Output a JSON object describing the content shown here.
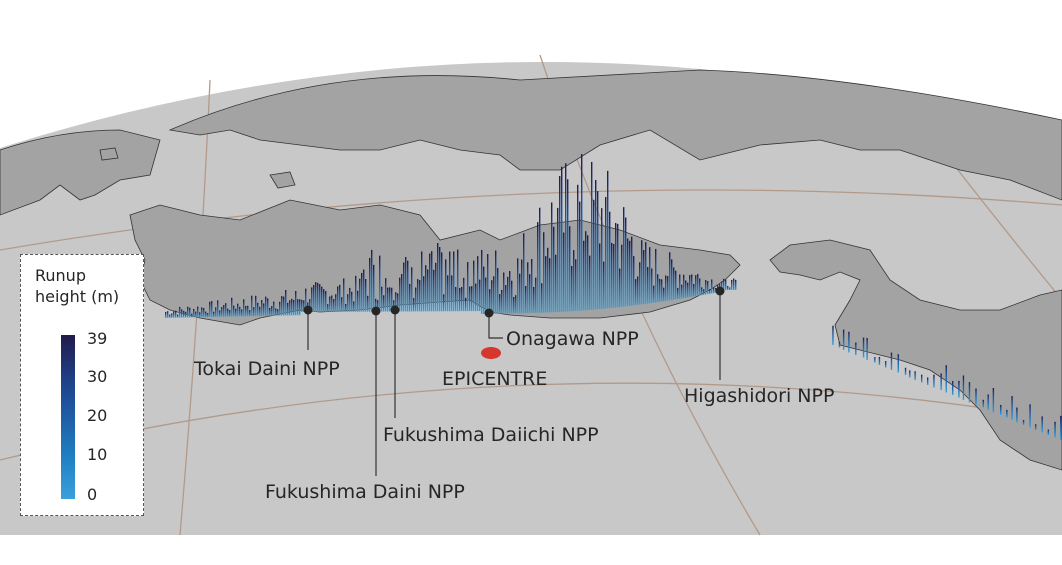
{
  "legend": {
    "title_line1": "Runup",
    "title_line2": "height (m)",
    "ticks": [
      "39",
      "30",
      "20",
      "10",
      "0"
    ],
    "max": 39,
    "min": 0
  },
  "labels": {
    "tokai": "Tokai Daini NPP",
    "fukushima_daini": "Fukushima Daini NPP",
    "fukushima_daiichi": "Fukushima Daiichi NPP",
    "onagawa": "Onagawa NPP",
    "epicentre": "EPICENTRE",
    "higashidori": "Higashidori NPP"
  },
  "colors": {
    "sea": "#c8c8c8",
    "land": "#a3a3a3",
    "graticule": "#b29a8a",
    "bar_low": "#3aa0dc",
    "bar_high": "#211b4a",
    "epicentre": "#d6362c"
  }
}
